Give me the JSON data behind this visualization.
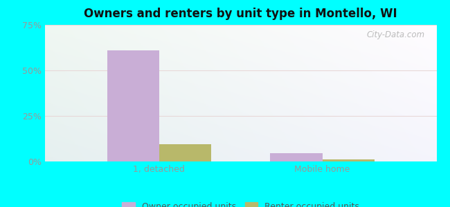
{
  "title": "Owners and renters by unit type in Montello, WI",
  "categories": [
    "1, detached",
    "Mobile home"
  ],
  "owner_values": [
    61.0,
    4.5
  ],
  "renter_values": [
    9.5,
    1.0
  ],
  "owner_color": "#c9aed6",
  "renter_color": "#b8b86a",
  "ylim": [
    0,
    75
  ],
  "yticks": [
    0,
    25,
    50,
    75
  ],
  "yticklabels": [
    "0%",
    "25%",
    "50%",
    "75%"
  ],
  "bar_width": 0.32,
  "outer_bg": "#00ffff",
  "watermark": "City-Data.com",
  "legend_labels": [
    "Owner occupied units",
    "Renter occupied units"
  ],
  "grid_color": "#e8d8d8",
  "tick_color": "#999999"
}
